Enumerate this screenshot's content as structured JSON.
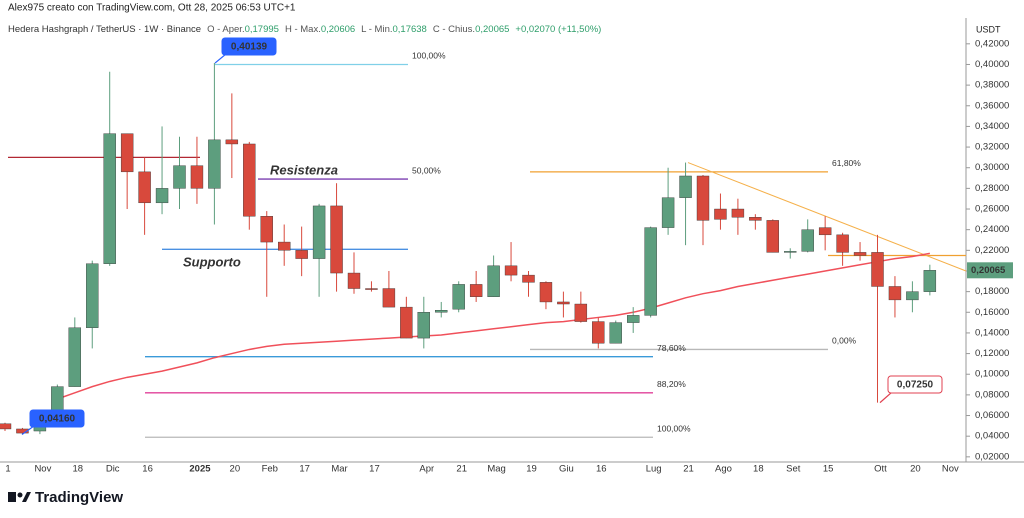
{
  "header": {
    "author_line": "Alex975 creato con TradingView.com, Ott 28, 2025 06:53 UTC+1",
    "symbol": "Hedera Hashgraph / TetherUS · 1W · Binance",
    "ohlc": [
      {
        "label": "O - Aper.",
        "value": "0,17995"
      },
      {
        "label": "H - Max.",
        "value": "0,20606"
      },
      {
        "label": "L - Min.",
        "value": "0,17638"
      },
      {
        "label": "C - Chius.",
        "value": "0,20065"
      }
    ],
    "change": "+0,02070 (+11,50%)"
  },
  "chart_data": {
    "type": "candlestick",
    "y_axis_label": "USDT",
    "categories": [
      "1",
      null,
      "Nov",
      null,
      "18",
      null,
      "Dic",
      null,
      "16",
      null,
      null,
      "2025",
      null,
      "20",
      null,
      "Feb",
      null,
      "17",
      null,
      "Mar",
      null,
      "17",
      null,
      null,
      "Apr",
      null,
      "21",
      null,
      "Mag",
      null,
      "19",
      null,
      "Giu",
      null,
      "16",
      null,
      null,
      "Lug",
      null,
      "21",
      null,
      "Ago",
      null,
      "18",
      null,
      "Set",
      null,
      "15",
      null,
      null,
      "Ott",
      null,
      "20",
      null,
      "Nov"
    ],
    "open": [
      0.052,
      0.047,
      0.045,
      0.052,
      0.088,
      0.145,
      0.207,
      0.333,
      0.296,
      0.266,
      0.28,
      0.302,
      0.28,
      0.327,
      0.323,
      0.253,
      0.228,
      0.22,
      0.212,
      0.263,
      0.198,
      0.183,
      0.183,
      0.165,
      0.135,
      0.16,
      0.163,
      0.187,
      0.175,
      0.205,
      0.196,
      0.189,
      0.17,
      0.168,
      0.151,
      0.13,
      0.15,
      0.157,
      0.242,
      0.271,
      0.292,
      0.26,
      0.26,
      0.252,
      0.249,
      0.218,
      0.219,
      0.242,
      0.235,
      0.218,
      0.218,
      0.185,
      0.172,
      0.17995,
      null
    ],
    "high": [
      0.053,
      0.048,
      0.058,
      0.09,
      0.155,
      0.21,
      0.393,
      0.333,
      0.31,
      0.34,
      0.33,
      0.33,
      0.40139,
      0.372,
      0.325,
      0.258,
      0.245,
      0.243,
      0.265,
      0.285,
      0.218,
      0.19,
      0.2,
      0.175,
      0.175,
      0.17,
      0.19,
      0.2,
      0.215,
      0.228,
      0.2,
      0.19,
      0.18,
      0.18,
      0.155,
      0.152,
      0.165,
      0.243,
      0.3,
      0.305,
      0.293,
      0.275,
      0.27,
      0.255,
      0.25,
      0.222,
      0.25,
      0.253,
      0.237,
      0.228,
      0.235,
      0.195,
      0.19,
      0.20606,
      null
    ],
    "low": [
      0.045,
      0.0416,
      0.042,
      0.05,
      0.088,
      0.125,
      0.205,
      0.26,
      0.235,
      0.255,
      0.26,
      0.265,
      0.245,
      0.29,
      0.24,
      0.175,
      0.205,
      0.195,
      0.175,
      0.18,
      0.178,
      0.18,
      0.165,
      0.135,
      0.125,
      0.155,
      0.16,
      0.17,
      0.175,
      0.19,
      0.175,
      0.163,
      0.155,
      0.15,
      0.125,
      0.13,
      0.14,
      0.155,
      0.235,
      0.225,
      0.225,
      0.24,
      0.235,
      0.24,
      0.218,
      0.212,
      0.218,
      0.22,
      0.205,
      0.21,
      0.0725,
      0.155,
      0.16,
      0.17638,
      null
    ],
    "close": [
      0.047,
      0.043,
      0.052,
      0.088,
      0.145,
      0.207,
      0.333,
      0.296,
      0.266,
      0.28,
      0.302,
      0.28,
      0.327,
      0.323,
      0.253,
      0.228,
      0.22,
      0.212,
      0.263,
      0.198,
      0.183,
      0.182,
      0.165,
      0.135,
      0.16,
      0.162,
      0.187,
      0.175,
      0.205,
      0.196,
      0.189,
      0.17,
      0.168,
      0.151,
      0.13,
      0.15,
      0.157,
      0.242,
      0.271,
      0.292,
      0.249,
      0.25,
      0.252,
      0.249,
      0.218,
      0.219,
      0.24,
      0.235,
      0.218,
      0.215,
      0.185,
      0.172,
      0.18,
      0.20065,
      null
    ],
    "up_color": "#5d9e7e",
    "down_color": "#d8493c",
    "ylim": [
      0.015,
      0.445
    ],
    "yticks": [
      {
        "value": 0.02,
        "label": "0,02000"
      },
      {
        "value": 0.04,
        "label": "0,04000"
      },
      {
        "value": 0.06,
        "label": "0,06000"
      },
      {
        "value": 0.08,
        "label": "0,08000"
      },
      {
        "value": 0.1,
        "label": "0,10000"
      },
      {
        "value": 0.12,
        "label": "0,12000"
      },
      {
        "value": 0.14,
        "label": "0,14000"
      },
      {
        "value": 0.16,
        "label": "0,16000"
      },
      {
        "value": 0.18,
        "label": "0,18000"
      },
      {
        "value": 0.2,
        "label": "0,20000"
      },
      {
        "value": 0.22,
        "label": "0,22000"
      },
      {
        "value": 0.24,
        "label": "0,24000"
      },
      {
        "value": 0.26,
        "label": "0,26000"
      },
      {
        "value": 0.28,
        "label": "0,28000"
      },
      {
        "value": 0.3,
        "label": "0,30000"
      },
      {
        "value": 0.32,
        "label": "0,32000"
      },
      {
        "value": 0.34,
        "label": "0,34000"
      },
      {
        "value": 0.36,
        "label": "0,36000"
      },
      {
        "value": 0.38,
        "label": "0,38000"
      },
      {
        "value": 0.4,
        "label": "0,40000"
      },
      {
        "value": 0.42,
        "label": "0,42000"
      }
    ],
    "grid": false,
    "ma": {
      "color": "#f0505a",
      "values": [
        null,
        null,
        null,
        0.076,
        0.082,
        0.088,
        0.093,
        0.097,
        0.1,
        0.103,
        0.107,
        0.111,
        0.116,
        0.12,
        0.124,
        0.127,
        0.129,
        0.13,
        0.131,
        0.132,
        0.133,
        0.134,
        0.135,
        0.136,
        0.137,
        0.138,
        0.14,
        0.142,
        0.144,
        0.146,
        0.148,
        0.15,
        0.151,
        0.153,
        0.155,
        0.157,
        0.16,
        0.164,
        0.169,
        0.174,
        0.178,
        0.181,
        0.185,
        0.188,
        0.191,
        0.194,
        0.197,
        0.2,
        0.203,
        0.206,
        0.209,
        0.212,
        0.214,
        0.217,
        null
      ]
    },
    "levels": [
      {
        "value": 0.31,
        "color": "#b22833"
      },
      {
        "label": "100,00%",
        "value": 0.4,
        "color": "#80d0e8"
      },
      {
        "label": "50,00%",
        "value": 0.289,
        "color": "#7b3fb0"
      },
      {
        "value": 0.221,
        "color": "#4a90e2"
      },
      {
        "label": "61,80%",
        "value": 0.296,
        "color": "#f0a030"
      },
      {
        "value": 0.215,
        "color": "#f0a030"
      },
      {
        "label": "0,00%",
        "value": 0.124,
        "color": "#b8b8b8"
      },
      {
        "label": "78,60%",
        "value": 0.117,
        "color": "#3a9ad9"
      },
      {
        "label": "88,20%",
        "value": 0.082,
        "color": "#e0409a"
      },
      {
        "label": "100,00%",
        "value": 0.039,
        "color": "#b8b8b8"
      }
    ],
    "notes": [
      {
        "text": "Resistenza",
        "color": "#8a3fb8"
      },
      {
        "text": "Supporto",
        "color": "#4a90e2"
      }
    ],
    "trendline": {
      "color": "#f5b04a",
      "values": [
        0.305,
        0.2
      ]
    },
    "callouts": [
      {
        "value": 0.40139,
        "label": "0,40139",
        "color": "#2962ff"
      },
      {
        "value": 0.0416,
        "label": "0,04160",
        "color": "#2962ff"
      },
      {
        "value": 0.0725,
        "label": "0,07250",
        "color": "#e04050"
      }
    ],
    "last_price": {
      "value": 0.20065,
      "label": "0,20065"
    }
  },
  "footer": {
    "brand": "TradingView"
  }
}
